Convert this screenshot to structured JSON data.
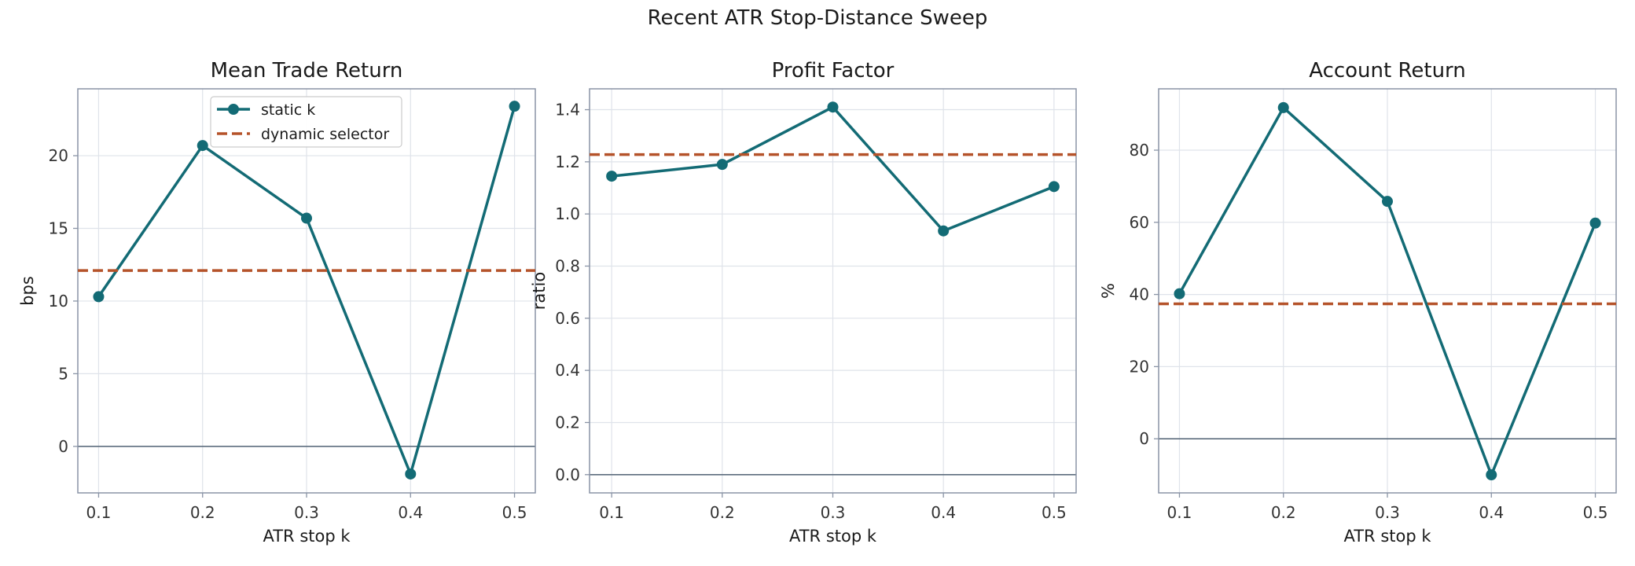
{
  "figure": {
    "title": "Recent ATR Stop-Distance Sweep"
  },
  "colors": {
    "static": "#136b75",
    "dynamic": "#b5532a",
    "zero_line": "#5d6d7e",
    "grid": "#dfe3ea",
    "frame": "#8a94a6"
  },
  "chart_data": [
    {
      "type": "line",
      "title": "Mean Trade Return",
      "xlabel": "ATR stop k",
      "ylabel": "bps",
      "x": [
        0.1,
        0.2,
        0.3,
        0.4,
        0.5
      ],
      "x_ticks": [
        "0.1",
        "0.2",
        "0.3",
        "0.4",
        "0.5"
      ],
      "xlim": [
        0.08,
        0.52
      ],
      "ylim": [
        -3.2,
        24.6
      ],
      "y_ticks": [
        0,
        5,
        10,
        15,
        20
      ],
      "y_tick_labels": [
        "0",
        "5",
        "10",
        "15",
        "20"
      ],
      "grid": true,
      "zero_line": true,
      "series": [
        {
          "name": "static k",
          "style": "solid-marker",
          "values": [
            10.3,
            20.7,
            15.7,
            -1.9,
            23.4
          ]
        },
        {
          "name": "dynamic selector",
          "style": "dashed-hline",
          "value": 12.1
        }
      ],
      "legend": {
        "placement": "upper-center"
      }
    },
    {
      "type": "line",
      "title": "Profit Factor",
      "xlabel": "ATR stop k",
      "ylabel": "ratio",
      "x": [
        0.1,
        0.2,
        0.3,
        0.4,
        0.5
      ],
      "x_ticks": [
        "0.1",
        "0.2",
        "0.3",
        "0.4",
        "0.5"
      ],
      "xlim": [
        0.08,
        0.52
      ],
      "ylim": [
        -0.07,
        1.48
      ],
      "y_ticks": [
        0,
        0.2,
        0.4,
        0.6,
        0.8,
        1.0,
        1.2,
        1.4
      ],
      "y_tick_labels": [
        "0.0",
        "0.2",
        "0.4",
        "0.6",
        "0.8",
        "1.0",
        "1.2",
        "1.4"
      ],
      "grid": true,
      "zero_line": true,
      "series": [
        {
          "name": "static k",
          "style": "solid-marker",
          "values": [
            1.145,
            1.19,
            1.41,
            0.935,
            1.105
          ]
        },
        {
          "name": "dynamic selector",
          "style": "dashed-hline",
          "value": 1.228
        }
      ]
    },
    {
      "type": "line",
      "title": "Account Return",
      "xlabel": "ATR stop k",
      "ylabel": "%",
      "x": [
        0.1,
        0.2,
        0.3,
        0.4,
        0.5
      ],
      "x_ticks": [
        "0.1",
        "0.2",
        "0.3",
        "0.4",
        "0.5"
      ],
      "xlim": [
        0.08,
        0.52
      ],
      "ylim": [
        -15,
        97
      ],
      "y_ticks": [
        0,
        20,
        40,
        60,
        80
      ],
      "y_tick_labels": [
        "0",
        "20",
        "40",
        "60",
        "80"
      ],
      "grid": true,
      "zero_line": true,
      "series": [
        {
          "name": "static k",
          "style": "solid-marker",
          "values": [
            40.2,
            91.8,
            65.8,
            -10.0,
            59.8
          ]
        },
        {
          "name": "dynamic selector",
          "style": "dashed-hline",
          "value": 37.4
        }
      ]
    }
  ]
}
